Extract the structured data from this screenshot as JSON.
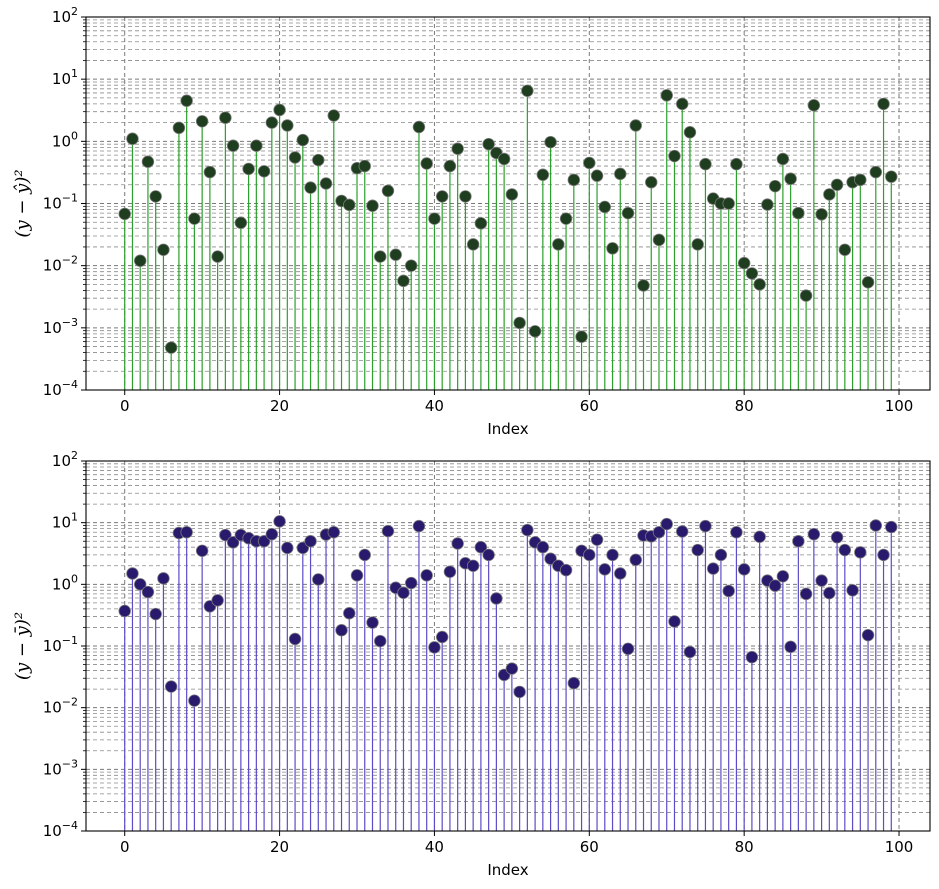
{
  "chart_data": [
    {
      "type": "scatter",
      "subtype": "stem",
      "xlabel": "Index",
      "ylabel": "(y − ŷ)²",
      "yscale": "log",
      "ylim_exponents": [
        -4,
        2
      ],
      "xlim": [
        -5,
        104
      ],
      "xticks": [
        0,
        20,
        40,
        60,
        80,
        100
      ],
      "yticks": [
        {
          "base": "10",
          "exp": "−4"
        },
        {
          "base": "10",
          "exp": "−3"
        },
        {
          "base": "10",
          "exp": "−2"
        },
        {
          "base": "10",
          "exp": "−1"
        },
        {
          "base": "10",
          "exp": "0"
        },
        {
          "base": "10",
          "exp": "1"
        },
        {
          "base": "10",
          "exp": "2"
        }
      ],
      "grid": true,
      "stem_color": "#2ca02c",
      "marker_color": "#1f3d1f",
      "x": [
        0,
        1,
        2,
        3,
        4,
        5,
        6,
        7,
        8,
        9,
        10,
        11,
        12,
        13,
        14,
        15,
        16,
        17,
        18,
        19,
        20,
        21,
        22,
        23,
        24,
        25,
        26,
        27,
        28,
        29,
        30,
        31,
        32,
        33,
        34,
        35,
        36,
        37,
        38,
        39,
        40,
        41,
        42,
        43,
        44,
        45,
        46,
        47,
        48,
        49,
        50,
        51,
        52,
        53,
        54,
        55,
        56,
        57,
        58,
        59,
        60,
        61,
        62,
        63,
        64,
        65,
        66,
        67,
        68,
        69,
        70,
        71,
        72,
        73,
        74,
        75,
        76,
        77,
        78,
        79,
        80,
        81,
        82,
        83,
        84,
        85,
        86,
        87,
        88,
        89,
        90,
        91,
        92,
        93,
        94,
        95,
        96,
        97,
        98,
        99
      ],
      "y": [
        0.068,
        1.1,
        0.012,
        0.47,
        0.13,
        0.018,
        0.00048,
        1.65,
        4.5,
        0.057,
        2.1,
        0.32,
        0.014,
        2.4,
        0.85,
        0.049,
        0.36,
        0.85,
        0.33,
        2.0,
        3.2,
        1.8,
        0.55,
        1.05,
        0.18,
        0.5,
        0.21,
        2.6,
        0.11,
        0.095,
        0.37,
        0.4,
        0.092,
        0.014,
        0.16,
        0.015,
        0.0057,
        0.01,
        1.7,
        0.44,
        0.057,
        0.13,
        0.4,
        0.76,
        0.13,
        0.022,
        0.048,
        0.9,
        0.65,
        0.52,
        0.14,
        0.0012,
        6.5,
        0.00088,
        0.29,
        0.97,
        0.022,
        0.057,
        0.24,
        0.00072,
        0.45,
        0.28,
        0.088,
        0.019,
        0.3,
        0.07,
        1.8,
        0.0048,
        0.22,
        0.026,
        5.5,
        0.58,
        4.0,
        1.4,
        0.022,
        0.43,
        0.12,
        0.1,
        0.1,
        0.43,
        0.011,
        0.0075,
        0.005,
        0.096,
        0.19,
        0.52,
        0.25,
        0.07,
        0.0033,
        3.8,
        0.067,
        0.14,
        0.2,
        0.018,
        0.22,
        0.24,
        0.0054,
        0.32,
        4.0,
        0.27
      ]
    },
    {
      "type": "scatter",
      "subtype": "stem",
      "xlabel": "Index",
      "ylabel": "(y − ȳ)²",
      "yscale": "log",
      "ylim_exponents": [
        -4,
        2
      ],
      "xlim": [
        -5,
        104
      ],
      "xticks": [
        0,
        20,
        40,
        60,
        80,
        100
      ],
      "yticks": [
        {
          "base": "10",
          "exp": "−4"
        },
        {
          "base": "10",
          "exp": "−3"
        },
        {
          "base": "10",
          "exp": "−2"
        },
        {
          "base": "10",
          "exp": "−1"
        },
        {
          "base": "10",
          "exp": "0"
        },
        {
          "base": "10",
          "exp": "1"
        },
        {
          "base": "10",
          "exp": "2"
        }
      ],
      "grid": true,
      "stem_color": "#5b4dc7",
      "marker_color": "#2a1a6e",
      "x": [
        0,
        1,
        2,
        3,
        4,
        5,
        6,
        7,
        8,
        9,
        10,
        11,
        12,
        13,
        14,
        15,
        16,
        17,
        18,
        19,
        20,
        21,
        22,
        23,
        24,
        25,
        26,
        27,
        28,
        29,
        30,
        31,
        32,
        33,
        34,
        35,
        36,
        37,
        38,
        39,
        40,
        41,
        42,
        43,
        44,
        45,
        46,
        47,
        48,
        49,
        50,
        51,
        52,
        53,
        54,
        55,
        56,
        57,
        58,
        59,
        60,
        61,
        62,
        63,
        64,
        65,
        66,
        67,
        68,
        69,
        70,
        71,
        72,
        73,
        74,
        75,
        76,
        77,
        78,
        79,
        80,
        81,
        82,
        83,
        84,
        85,
        86,
        87,
        88,
        89,
        90,
        91,
        92,
        93,
        94,
        95,
        96,
        97,
        98,
        99
      ],
      "y": [
        0.37,
        1.5,
        1.0,
        0.75,
        0.33,
        1.25,
        0.022,
        6.8,
        7.0,
        0.013,
        3.5,
        0.44,
        0.55,
        6.3,
        4.8,
        6.3,
        5.6,
        5.0,
        5.0,
        6.5,
        10.5,
        3.9,
        0.13,
        3.9,
        5.0,
        1.2,
        6.4,
        7.0,
        0.18,
        0.34,
        1.4,
        3.0,
        0.24,
        0.12,
        7.3,
        0.88,
        0.73,
        1.05,
        8.8,
        1.4,
        0.095,
        0.14,
        1.6,
        4.6,
        2.2,
        2.0,
        4.0,
        3.0,
        0.59,
        0.034,
        0.043,
        0.018,
        7.6,
        4.8,
        4.0,
        2.6,
        2.0,
        1.7,
        0.025,
        3.5,
        3.0,
        5.3,
        1.75,
        3.0,
        1.5,
        0.09,
        2.5,
        6.2,
        6.0,
        7.0,
        9.5,
        0.25,
        7.2,
        0.08,
        3.6,
        8.8,
        1.8,
        3.0,
        0.78,
        7.0,
        1.75,
        0.066,
        5.9,
        1.15,
        0.95,
        1.35,
        0.097,
        5.0,
        0.7,
        6.5,
        1.15,
        0.72,
        5.8,
        3.6,
        0.8,
        3.3,
        0.15,
        9.0,
        3.0,
        8.5
      ]
    }
  ]
}
